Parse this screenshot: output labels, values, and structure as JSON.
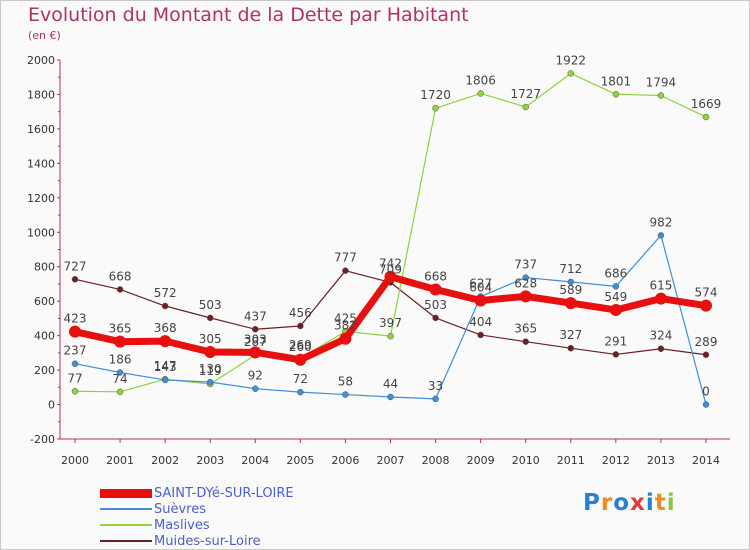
{
  "header": {
    "title": "Evolution du Montant de la Dette par Habitant",
    "unit": "(en €)"
  },
  "logo": {
    "text": "Proxiti",
    "letter_colors": [
      "#2a7fd4",
      "#f08a1c",
      "#2a7fd4",
      "#e03c3c",
      "#2a7fd4",
      "#f08a1c",
      "#8cc63f"
    ]
  },
  "chart_data": {
    "type": "line",
    "title": "Evolution du Montant de la Dette par Habitant",
    "ylabel": "(en €)",
    "xlabel": "",
    "x": [
      2000,
      2001,
      2002,
      2003,
      2004,
      2005,
      2006,
      2007,
      2008,
      2009,
      2010,
      2011,
      2012,
      2013,
      2014
    ],
    "ylim": [
      -200,
      2000
    ],
    "yticks": [
      -200,
      0,
      200,
      400,
      600,
      800,
      1000,
      1200,
      1400,
      1600,
      1800,
      2000
    ],
    "grid": false,
    "legend_position": "bottom-left",
    "series": [
      {
        "name": "Muides-sur-Loire",
        "color": "#6e1f22",
        "values": [
          727,
          668,
          572,
          503,
          437,
          456,
          777,
          709,
          503,
          404,
          365,
          327,
          291,
          324,
          289
        ]
      },
      {
        "name": "Maslives",
        "color": "#8cd43a",
        "values": [
          77,
          74,
          147,
          119,
          287,
          269,
          425,
          397,
          1720,
          1806,
          1727,
          1922,
          1801,
          1794,
          1669
        ]
      },
      {
        "name": "Suèvres",
        "color": "#3e8ed8",
        "values": [
          237,
          186,
          143,
          130,
          92,
          72,
          58,
          44,
          33,
          627,
          737,
          712,
          686,
          982,
          0
        ]
      },
      {
        "name": "SAINT-DYé-SUR-LOIRE",
        "color": "#e80f0f",
        "values": [
          423,
          365,
          368,
          305,
          303,
          260,
          382,
          742,
          668,
          604,
          628,
          589,
          549,
          615,
          574
        ]
      }
    ],
    "legend_order": [
      "SAINT-DYé-SUR-LOIRE",
      "Suèvres",
      "Maslives",
      "Muides-sur-Loire"
    ]
  }
}
